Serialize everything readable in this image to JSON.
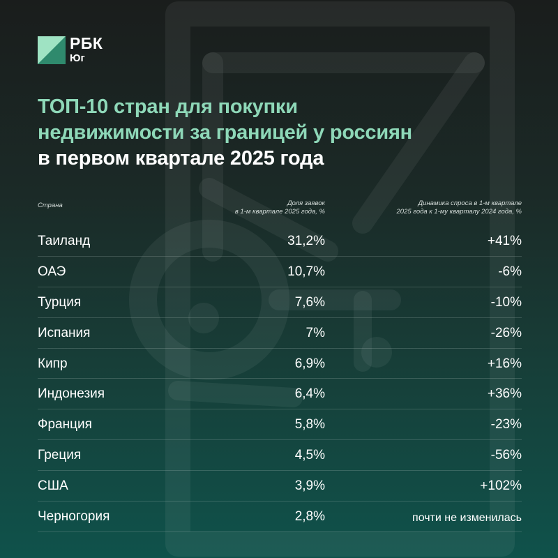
{
  "brand": {
    "name": "РБК",
    "region": "Юг",
    "logo_icon": "rbc-logo-icon",
    "colors": {
      "accent": "#8ed8b8",
      "logo_light": "#9fe3c3",
      "logo_dark": "#2f8a6d"
    }
  },
  "headline": {
    "line1": "ТОП-10 стран для покупки",
    "line2": "недвижимости за границей у россиян",
    "line3": "в первом квартале 2025 года"
  },
  "table": {
    "headers": {
      "country": "Страна",
      "share_line1": "Доля заявок",
      "share_line2": "в 1-м квартале 2025 года, %",
      "dynamics_line1": "Динамика спроса в 1-м квартале",
      "dynamics_line2": "2025 года к 1-му кварталу 2024 года, %"
    },
    "rows": [
      {
        "country": "Таиланд",
        "share": "31,2%",
        "dynamics": "+41%"
      },
      {
        "country": "ОАЭ",
        "share": "10,7%",
        "dynamics": "-6%"
      },
      {
        "country": "Турция",
        "share": "7,6%",
        "dynamics": "-10%"
      },
      {
        "country": "Испания",
        "share": "7%",
        "dynamics": "-26%"
      },
      {
        "country": "Кипр",
        "share": "6,9%",
        "dynamics": "+16%"
      },
      {
        "country": "Индонезия",
        "share": "6,4%",
        "dynamics": "+36%"
      },
      {
        "country": "Франция",
        "share": "5,8%",
        "dynamics": "-23%"
      },
      {
        "country": "Греция",
        "share": "4,5%",
        "dynamics": "-56%"
      },
      {
        "country": "США",
        "share": "3,9%",
        "dynamics": "+102%"
      },
      {
        "country": "Черногория",
        "share": "2,8%",
        "dynamics": "почти не изменилась"
      }
    ]
  },
  "background_icon": "house-key-icon"
}
